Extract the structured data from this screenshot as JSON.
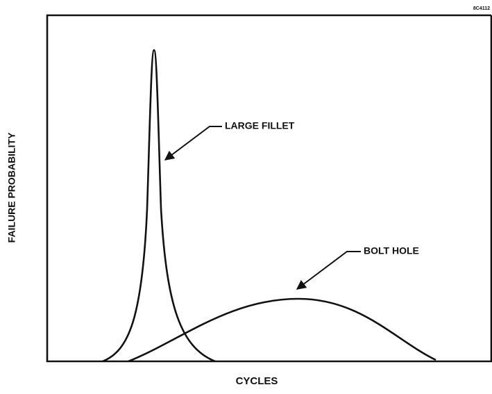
{
  "figure_id": "8C4112",
  "y_axis_label": "FAILURE PROBABILITY",
  "x_axis_label": "CYCLES",
  "curves": [
    {
      "label": "LARGE FILLET"
    },
    {
      "label": "BOLT HOLE"
    }
  ]
}
